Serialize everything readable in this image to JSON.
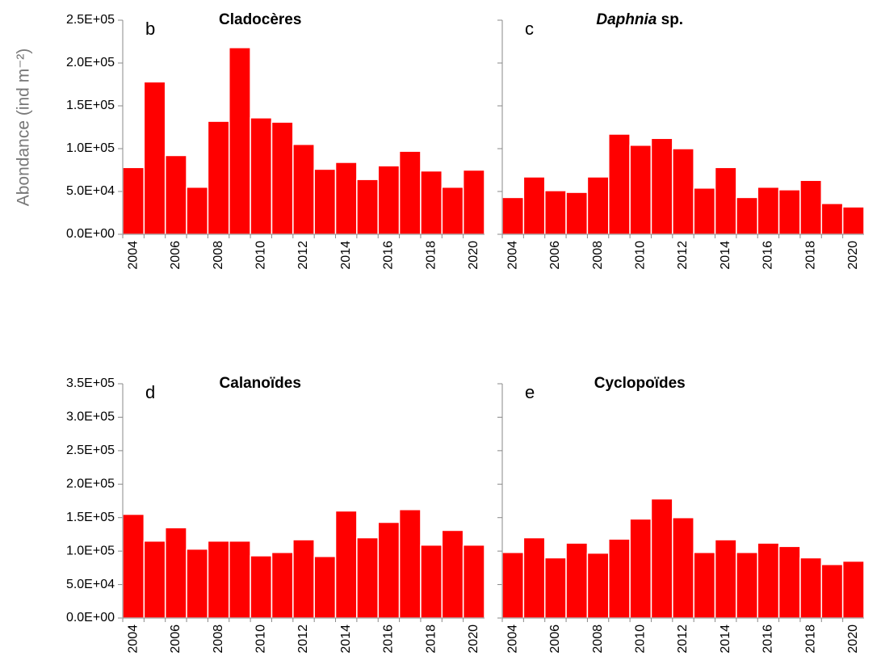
{
  "chart_data": [
    {
      "type": "bar",
      "title": "Cladocères",
      "annotation": "b",
      "ylabel": "Abondance (ind m⁻²)",
      "color": "#ff0000",
      "categories": [
        "2004",
        null,
        "2006",
        null,
        "2008",
        null,
        "2010",
        null,
        "2012",
        null,
        "2014",
        null,
        "2016",
        null,
        "2018",
        null,
        "2020"
      ],
      "values": [
        78000,
        178000,
        92000,
        55000,
        132000,
        218000,
        136000,
        131000,
        105000,
        76000,
        84000,
        64000,
        80000,
        97000,
        74000,
        55000,
        75000
      ],
      "ylim": [
        0,
        250000
      ],
      "yticks": [
        {
          "value": 0,
          "label": "0.0E+00"
        },
        {
          "value": 50000,
          "label": "5.0E+04"
        },
        {
          "value": 100000,
          "label": "1.0E+05"
        },
        {
          "value": 150000,
          "label": "1.5E+05"
        },
        {
          "value": 200000,
          "label": "2.0E+05"
        },
        {
          "value": 250000,
          "label": "2.5E+05"
        }
      ]
    },
    {
      "type": "bar",
      "title": {
        "italic": "Daphnia",
        "text": " sp."
      },
      "annotation": "c",
      "color": "#ff0000",
      "categories": [
        "2004",
        null,
        "2006",
        null,
        "2008",
        null,
        "2010",
        null,
        "2012",
        null,
        "2014",
        null,
        "2016",
        null,
        "2018",
        null,
        "2020"
      ],
      "values": [
        43000,
        67000,
        51000,
        49000,
        67000,
        117000,
        104000,
        112000,
        100000,
        54000,
        78000,
        43000,
        55000,
        52000,
        63000,
        36000,
        32000
      ],
      "ylim": [
        0,
        250000
      ],
      "yticks": [
        0,
        50000,
        100000,
        150000,
        200000,
        250000
      ]
    },
    {
      "type": "bar",
      "title": "Calanoïdes",
      "annotation": "d",
      "color": "#ff0000",
      "categories": [
        "2004",
        null,
        "2006",
        null,
        "2008",
        null,
        "2010",
        null,
        "2012",
        null,
        "2014",
        null,
        "2016",
        null,
        "2018",
        null,
        "2020"
      ],
      "values": [
        155000,
        115000,
        135000,
        103000,
        115000,
        115000,
        93000,
        98000,
        117000,
        92000,
        160000,
        120000,
        143000,
        162000,
        109000,
        131000,
        109000
      ],
      "ylim": [
        0,
        350000
      ],
      "yticks": [
        {
          "value": 0,
          "label": "0.0E+00"
        },
        {
          "value": 50000,
          "label": "5.0E+04"
        },
        {
          "value": 100000,
          "label": "1.0E+05"
        },
        {
          "value": 150000,
          "label": "1.5E+05"
        },
        {
          "value": 200000,
          "label": "2.0E+05"
        },
        {
          "value": 250000,
          "label": "2.5E+05"
        },
        {
          "value": 300000,
          "label": "3.0E+05"
        },
        {
          "value": 350000,
          "label": "3.5E+05"
        }
      ]
    },
    {
      "type": "bar",
      "title": "Cyclopoïdes",
      "annotation": "e",
      "color": "#ff0000",
      "categories": [
        "2004",
        null,
        "2006",
        null,
        "2008",
        null,
        "2010",
        null,
        "2012",
        null,
        "2014",
        null,
        "2016",
        null,
        "2018",
        null,
        "2020"
      ],
      "values": [
        98000,
        120000,
        90000,
        112000,
        97000,
        118000,
        148000,
        178000,
        150000,
        98000,
        117000,
        98000,
        112000,
        107000,
        90000,
        80000,
        85000
      ],
      "ylim": [
        0,
        350000
      ],
      "yticks": [
        0,
        50000,
        100000,
        150000,
        200000,
        250000,
        300000,
        350000
      ]
    }
  ]
}
